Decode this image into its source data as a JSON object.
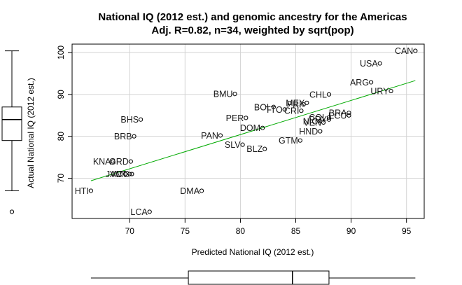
{
  "chart_data": {
    "type": "scatter",
    "title": "National IQ (2012 est.) and genomic ancestry for the Americas",
    "subtitle": "Adj. R=0.82, n=34, weighted by sqrt(pop)",
    "xlabel": "Predicted National IQ (2012 est.)",
    "ylabel": "Actual National IQ (2012 est.)",
    "xlim": [
      64.8,
      96.6
    ],
    "ylim": [
      60.4,
      102.0
    ],
    "x_ticks": [
      70,
      75,
      80,
      85,
      90,
      95
    ],
    "y_ticks": [
      70,
      80,
      90,
      100
    ],
    "grid": true,
    "regression_line": {
      "x": [
        66.5,
        95.8
      ],
      "y": [
        69.4,
        93.3
      ],
      "color": "#00aa00"
    },
    "points": [
      {
        "label": "CAN",
        "x": 95.8,
        "y": 100.4
      },
      {
        "label": "USA",
        "x": 92.6,
        "y": 97.4
      },
      {
        "label": "ARG",
        "x": 91.8,
        "y": 92.9
      },
      {
        "label": "URY",
        "x": 93.6,
        "y": 90.8
      },
      {
        "label": "CHL",
        "x": 88.0,
        "y": 90.0
      },
      {
        "label": "BMU",
        "x": 79.5,
        "y": 90.1
      },
      {
        "label": "MEX",
        "x": 86.0,
        "y": 88.0
      },
      {
        "label": "PRI",
        "x": 85.7,
        "y": 87.6
      },
      {
        "label": "BOL",
        "x": 83.0,
        "y": 87.0
      },
      {
        "label": "TTO",
        "x": 84.0,
        "y": 86.4
      },
      {
        "label": "CRI",
        "x": 85.5,
        "y": 86.1
      },
      {
        "label": "BRA",
        "x": 89.8,
        "y": 85.6
      },
      {
        "label": "ECU",
        "x": 89.8,
        "y": 85.0
      },
      {
        "label": "COL",
        "x": 88.0,
        "y": 84.5
      },
      {
        "label": "PRY",
        "x": 88.0,
        "y": 84.0
      },
      {
        "label": "NIC",
        "x": 87.2,
        "y": 83.6
      },
      {
        "label": "PAN",
        "x": 78.2,
        "y": 80.2
      },
      {
        "label": "PER",
        "x": 80.5,
        "y": 84.4
      },
      {
        "label": "DOM",
        "x": 82.0,
        "y": 82.0
      },
      {
        "label": "HND",
        "x": 87.2,
        "y": 81.2
      },
      {
        "label": "VEN",
        "x": 87.5,
        "y": 83.3
      },
      {
        "label": "GTM",
        "x": 85.4,
        "y": 79.0
      },
      {
        "label": "SLV",
        "x": 80.2,
        "y": 78.0
      },
      {
        "label": "BLZ",
        "x": 82.2,
        "y": 77.0
      },
      {
        "label": "BHS",
        "x": 71.0,
        "y": 84.0
      },
      {
        "label": "BRB",
        "x": 70.4,
        "y": 80.0
      },
      {
        "label": "KNA",
        "x": 68.5,
        "y": 74.0
      },
      {
        "label": "GRD",
        "x": 70.1,
        "y": 74.0
      },
      {
        "label": "JAM",
        "x": 69.6,
        "y": 71.0
      },
      {
        "label": "VCT",
        "x": 70.0,
        "y": 71.0
      },
      {
        "label": "ATG",
        "x": 70.2,
        "y": 71.0
      },
      {
        "label": "HTI",
        "x": 66.5,
        "y": 67.0
      },
      {
        "label": "DMA",
        "x": 76.5,
        "y": 67.0
      },
      {
        "label": "LCA",
        "x": 71.8,
        "y": 62.0
      }
    ],
    "y_boxplot": {
      "min": 67,
      "q1": 79,
      "median": 84,
      "q3": 87,
      "max": 100.4,
      "outliers": [
        62
      ]
    },
    "x_boxplot": {
      "min": 66.5,
      "q1": 75.3,
      "median": 84.7,
      "q3": 88.0,
      "max": 95.8,
      "outliers": []
    }
  }
}
